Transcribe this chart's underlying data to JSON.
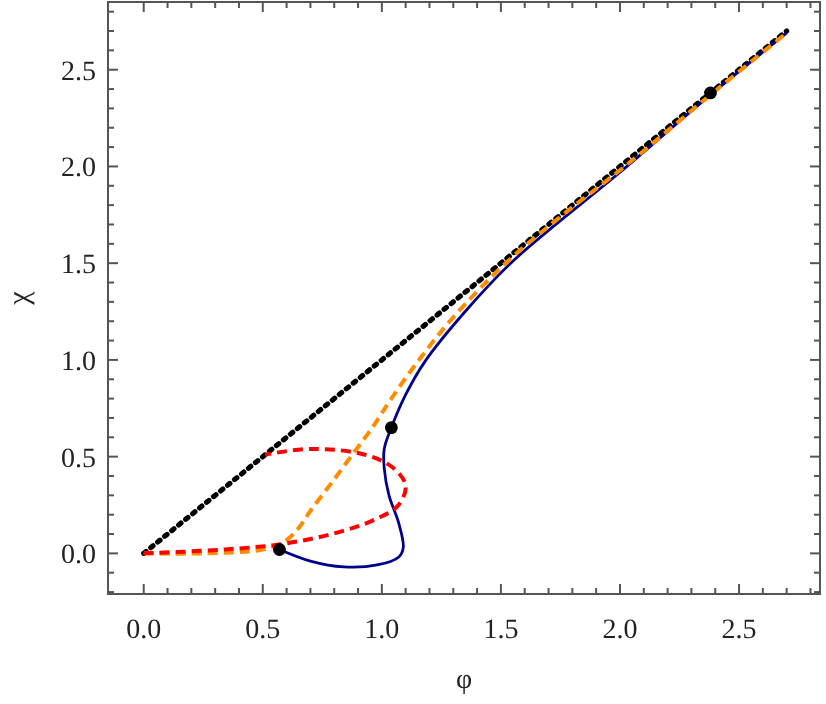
{
  "chart_data": {
    "type": "line",
    "xlabel": "φ",
    "ylabel": "χ",
    "xlim": [
      -0.15,
      2.84
    ],
    "ylim": [
      -0.21,
      2.85
    ],
    "xticks": [
      {
        "value": 0,
        "label": "0.0"
      },
      {
        "value": 0.1,
        "label": null
      },
      {
        "value": 0.2,
        "label": null
      },
      {
        "value": 0.3,
        "label": null
      },
      {
        "value": 0.4,
        "label": null
      },
      0.5,
      {
        "value": 0.6,
        "label": null
      },
      {
        "value": 0.7,
        "label": null
      },
      {
        "value": 0.8,
        "label": null
      },
      {
        "value": 0.9,
        "label": null
      },
      {
        "value": 1.0,
        "label": "1.0"
      },
      {
        "value": 1.1,
        "label": null
      },
      {
        "value": 1.2,
        "label": null
      },
      {
        "value": 1.3,
        "label": null
      },
      {
        "value": 1.4,
        "label": null
      },
      1.5,
      {
        "value": 1.6,
        "label": null
      },
      {
        "value": 1.7,
        "label": null
      },
      {
        "value": 1.8,
        "label": null
      },
      {
        "value": 1.9,
        "label": null
      },
      {
        "value": 2.0,
        "label": "2.0"
      },
      {
        "value": 2.1,
        "label": null
      },
      {
        "value": 2.2,
        "label": null
      },
      {
        "value": 2.3,
        "label": null
      },
      {
        "value": 2.4,
        "label": null
      },
      2.5,
      {
        "value": 2.6,
        "label": null
      },
      {
        "value": 2.7,
        "label": null
      },
      {
        "value": 2.8,
        "label": null
      }
    ],
    "yticks": [
      {
        "value": -0.2,
        "label": null
      },
      {
        "value": -0.1,
        "label": null
      },
      {
        "value": 0,
        "label": "0.0"
      },
      {
        "value": 0.1,
        "label": null
      },
      {
        "value": 0.2,
        "label": null
      },
      {
        "value": 0.3,
        "label": null
      },
      {
        "value": 0.4,
        "label": null
      },
      0.5,
      {
        "value": 0.6,
        "label": null
      },
      {
        "value": 0.7,
        "label": null
      },
      {
        "value": 0.8,
        "label": null
      },
      {
        "value": 0.9,
        "label": null
      },
      {
        "value": 1.0,
        "label": "1.0"
      },
      {
        "value": 1.1,
        "label": null
      },
      {
        "value": 1.2,
        "label": null
      },
      {
        "value": 1.3,
        "label": null
      },
      {
        "value": 1.4,
        "label": null
      },
      1.5,
      {
        "value": 1.6,
        "label": null
      },
      {
        "value": 1.7,
        "label": null
      },
      {
        "value": 1.8,
        "label": null
      },
      {
        "value": 1.9,
        "label": null
      },
      {
        "value": 2.0,
        "label": "2.0"
      },
      {
        "value": 2.1,
        "label": null
      },
      {
        "value": 2.2,
        "label": null
      },
      {
        "value": 2.3,
        "label": null
      },
      {
        "value": 2.4,
        "label": null
      },
      2.5,
      {
        "value": 2.6,
        "label": null
      },
      {
        "value": 2.7,
        "label": null
      },
      {
        "value": 2.8,
        "label": null
      }
    ],
    "marker": "none",
    "series": [
      {
        "color": "#000000",
        "line_style": "dotted",
        "x": [
          0,
          2.7
        ],
        "values": [
          0,
          2.7
        ]
      },
      {
        "color": "#00008b",
        "line_style": "solid",
        "x": [
          0.57,
          0.7,
          0.84,
          0.98,
          1.07,
          1.09,
          1.07,
          1.03,
          1.01,
          1.01,
          1.04,
          1.1,
          1.18,
          1.35,
          1.55,
          2.0,
          2.38,
          2.7
        ],
        "values": [
          0.02,
          -0.04,
          -0.07,
          -0.06,
          -0.02,
          0.03,
          0.16,
          0.3,
          0.44,
          0.54,
          0.65,
          0.82,
          0.99,
          1.25,
          1.51,
          1.97,
          2.37,
          2.69
        ]
      },
      {
        "color": "#ff8c00",
        "line_style": "dashed",
        "x": [
          0,
          0.25,
          0.5,
          0.59,
          0.65,
          0.7,
          0.78,
          0.87,
          0.96,
          1.04,
          1.15,
          1.3,
          1.52,
          1.75,
          2.02,
          2.38,
          2.7
        ],
        "values": [
          0,
          0,
          0.02,
          0.06,
          0.13,
          0.22,
          0.35,
          0.5,
          0.65,
          0.8,
          0.99,
          1.22,
          1.5,
          1.74,
          2.0,
          2.37,
          2.69
        ]
      },
      {
        "color": "#ff0000",
        "line_style": "dashed",
        "x": [
          0,
          0.34,
          0.59,
          0.82,
          0.98,
          1.07,
          1.1,
          1.05,
          0.93,
          0.7,
          0.51
        ],
        "values": [
          0,
          0.02,
          0.05,
          0.11,
          0.18,
          0.25,
          0.35,
          0.44,
          0.51,
          0.54,
          0.51
        ]
      },
      {
        "type": "scatter",
        "color": "#000000",
        "marker": "circle",
        "x": [
          0.57,
          1.04,
          2.38
        ],
        "values": [
          0.02,
          0.65,
          2.38
        ]
      }
    ]
  }
}
